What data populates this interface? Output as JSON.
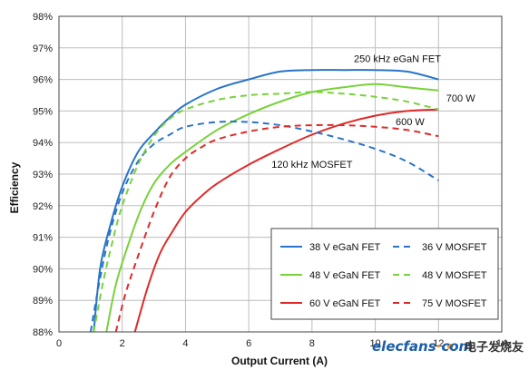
{
  "chart_data": {
    "type": "line",
    "title": "",
    "xlabel": "Output Current (A)",
    "ylabel": "Efficiency",
    "xlim": [
      0,
      14
    ],
    "ylim": [
      88,
      98
    ],
    "x_ticks": [
      "0",
      "2",
      "4",
      "6",
      "8",
      "10",
      "12",
      "14"
    ],
    "y_ticks": [
      "88%",
      "89%",
      "90%",
      "91%",
      "92%",
      "93%",
      "94%",
      "95%",
      "96%",
      "97%",
      "98%"
    ],
    "grid": true,
    "legend_position": "bottom-right",
    "series": [
      {
        "name": "38 V eGaN FET",
        "color": "#2874c9",
        "dash": false,
        "x": [
          1.1,
          1.3,
          1.6,
          2.0,
          2.5,
          3.0,
          3.5,
          4.0,
          5.0,
          6.0,
          7.0,
          8.0,
          9.0,
          10.0,
          11.0,
          12.0
        ],
        "y": [
          88.0,
          90.0,
          91.3,
          92.6,
          93.7,
          94.3,
          94.8,
          95.2,
          95.7,
          96.0,
          96.25,
          96.3,
          96.3,
          96.3,
          96.25,
          96.0
        ]
      },
      {
        "name": "48 V eGaN FET",
        "color": "#78d23a",
        "dash": false,
        "x": [
          1.5,
          1.8,
          2.2,
          2.6,
          3.0,
          3.5,
          4.0,
          5.0,
          6.0,
          7.0,
          8.0,
          9.0,
          10.0,
          11.0,
          12.0
        ],
        "y": [
          88.0,
          89.5,
          90.8,
          91.9,
          92.7,
          93.3,
          93.7,
          94.4,
          94.9,
          95.3,
          95.6,
          95.75,
          95.85,
          95.75,
          95.65
        ]
      },
      {
        "name": "60 V eGaN FET",
        "color": "#e02a2a",
        "dash": false,
        "x": [
          2.4,
          2.8,
          3.2,
          3.6,
          4.0,
          4.5,
          5.0,
          6.0,
          7.0,
          8.0,
          9.0,
          10.0,
          11.0,
          12.0
        ],
        "y": [
          88.0,
          89.4,
          90.5,
          91.2,
          91.8,
          92.3,
          92.7,
          93.3,
          93.8,
          94.25,
          94.6,
          94.85,
          95.0,
          95.05
        ]
      },
      {
        "name": "36 V MOSFET",
        "color": "#2874c9",
        "dash": true,
        "x": [
          1.0,
          1.3,
          1.6,
          2.0,
          2.5,
          3.0,
          3.5,
          4.0,
          5.0,
          6.0,
          7.0,
          8.0,
          9.0,
          10.0,
          11.0,
          12.0
        ],
        "y": [
          88.0,
          89.7,
          91.1,
          92.4,
          93.4,
          93.95,
          94.25,
          94.5,
          94.65,
          94.65,
          94.55,
          94.35,
          94.1,
          93.8,
          93.4,
          92.8
        ]
      },
      {
        "name": "48 V MOSFET",
        "color": "#78d23a",
        "dash": true,
        "x": [
          1.1,
          1.4,
          1.7,
          2.0,
          2.5,
          3.0,
          3.5,
          4.0,
          5.0,
          6.0,
          7.0,
          8.0,
          9.0,
          10.0,
          11.0,
          12.0
        ],
        "y": [
          88.0,
          89.6,
          90.9,
          92.0,
          93.3,
          94.2,
          94.75,
          95.05,
          95.35,
          95.5,
          95.55,
          95.6,
          95.55,
          95.45,
          95.3,
          95.05
        ]
      },
      {
        "name": "75 V MOSFET",
        "color": "#e02a2a",
        "dash": true,
        "x": [
          1.8,
          2.1,
          2.5,
          3.0,
          3.5,
          4.0,
          4.5,
          5.0,
          6.0,
          7.0,
          8.0,
          9.0,
          10.0,
          11.0,
          12.0
        ],
        "y": [
          88.0,
          89.2,
          90.4,
          91.8,
          92.9,
          93.5,
          93.85,
          94.1,
          94.35,
          94.5,
          94.55,
          94.55,
          94.5,
          94.4,
          94.2
        ]
      }
    ],
    "annotations": [
      {
        "text": "250 kHz eGaN FET",
        "x": 10.7,
        "y": 96.55
      },
      {
        "text": "700 W",
        "x": 12.7,
        "y": 95.3
      },
      {
        "text": "600 W",
        "x": 11.1,
        "y": 94.55
      },
      {
        "text": "120 kHz MOSFET",
        "x": 8.0,
        "y": 93.2
      }
    ]
  },
  "watermark": {
    "brand": "elecfans",
    "dot": "·",
    "domain": "com",
    "chinese": "电子发烧友"
  }
}
